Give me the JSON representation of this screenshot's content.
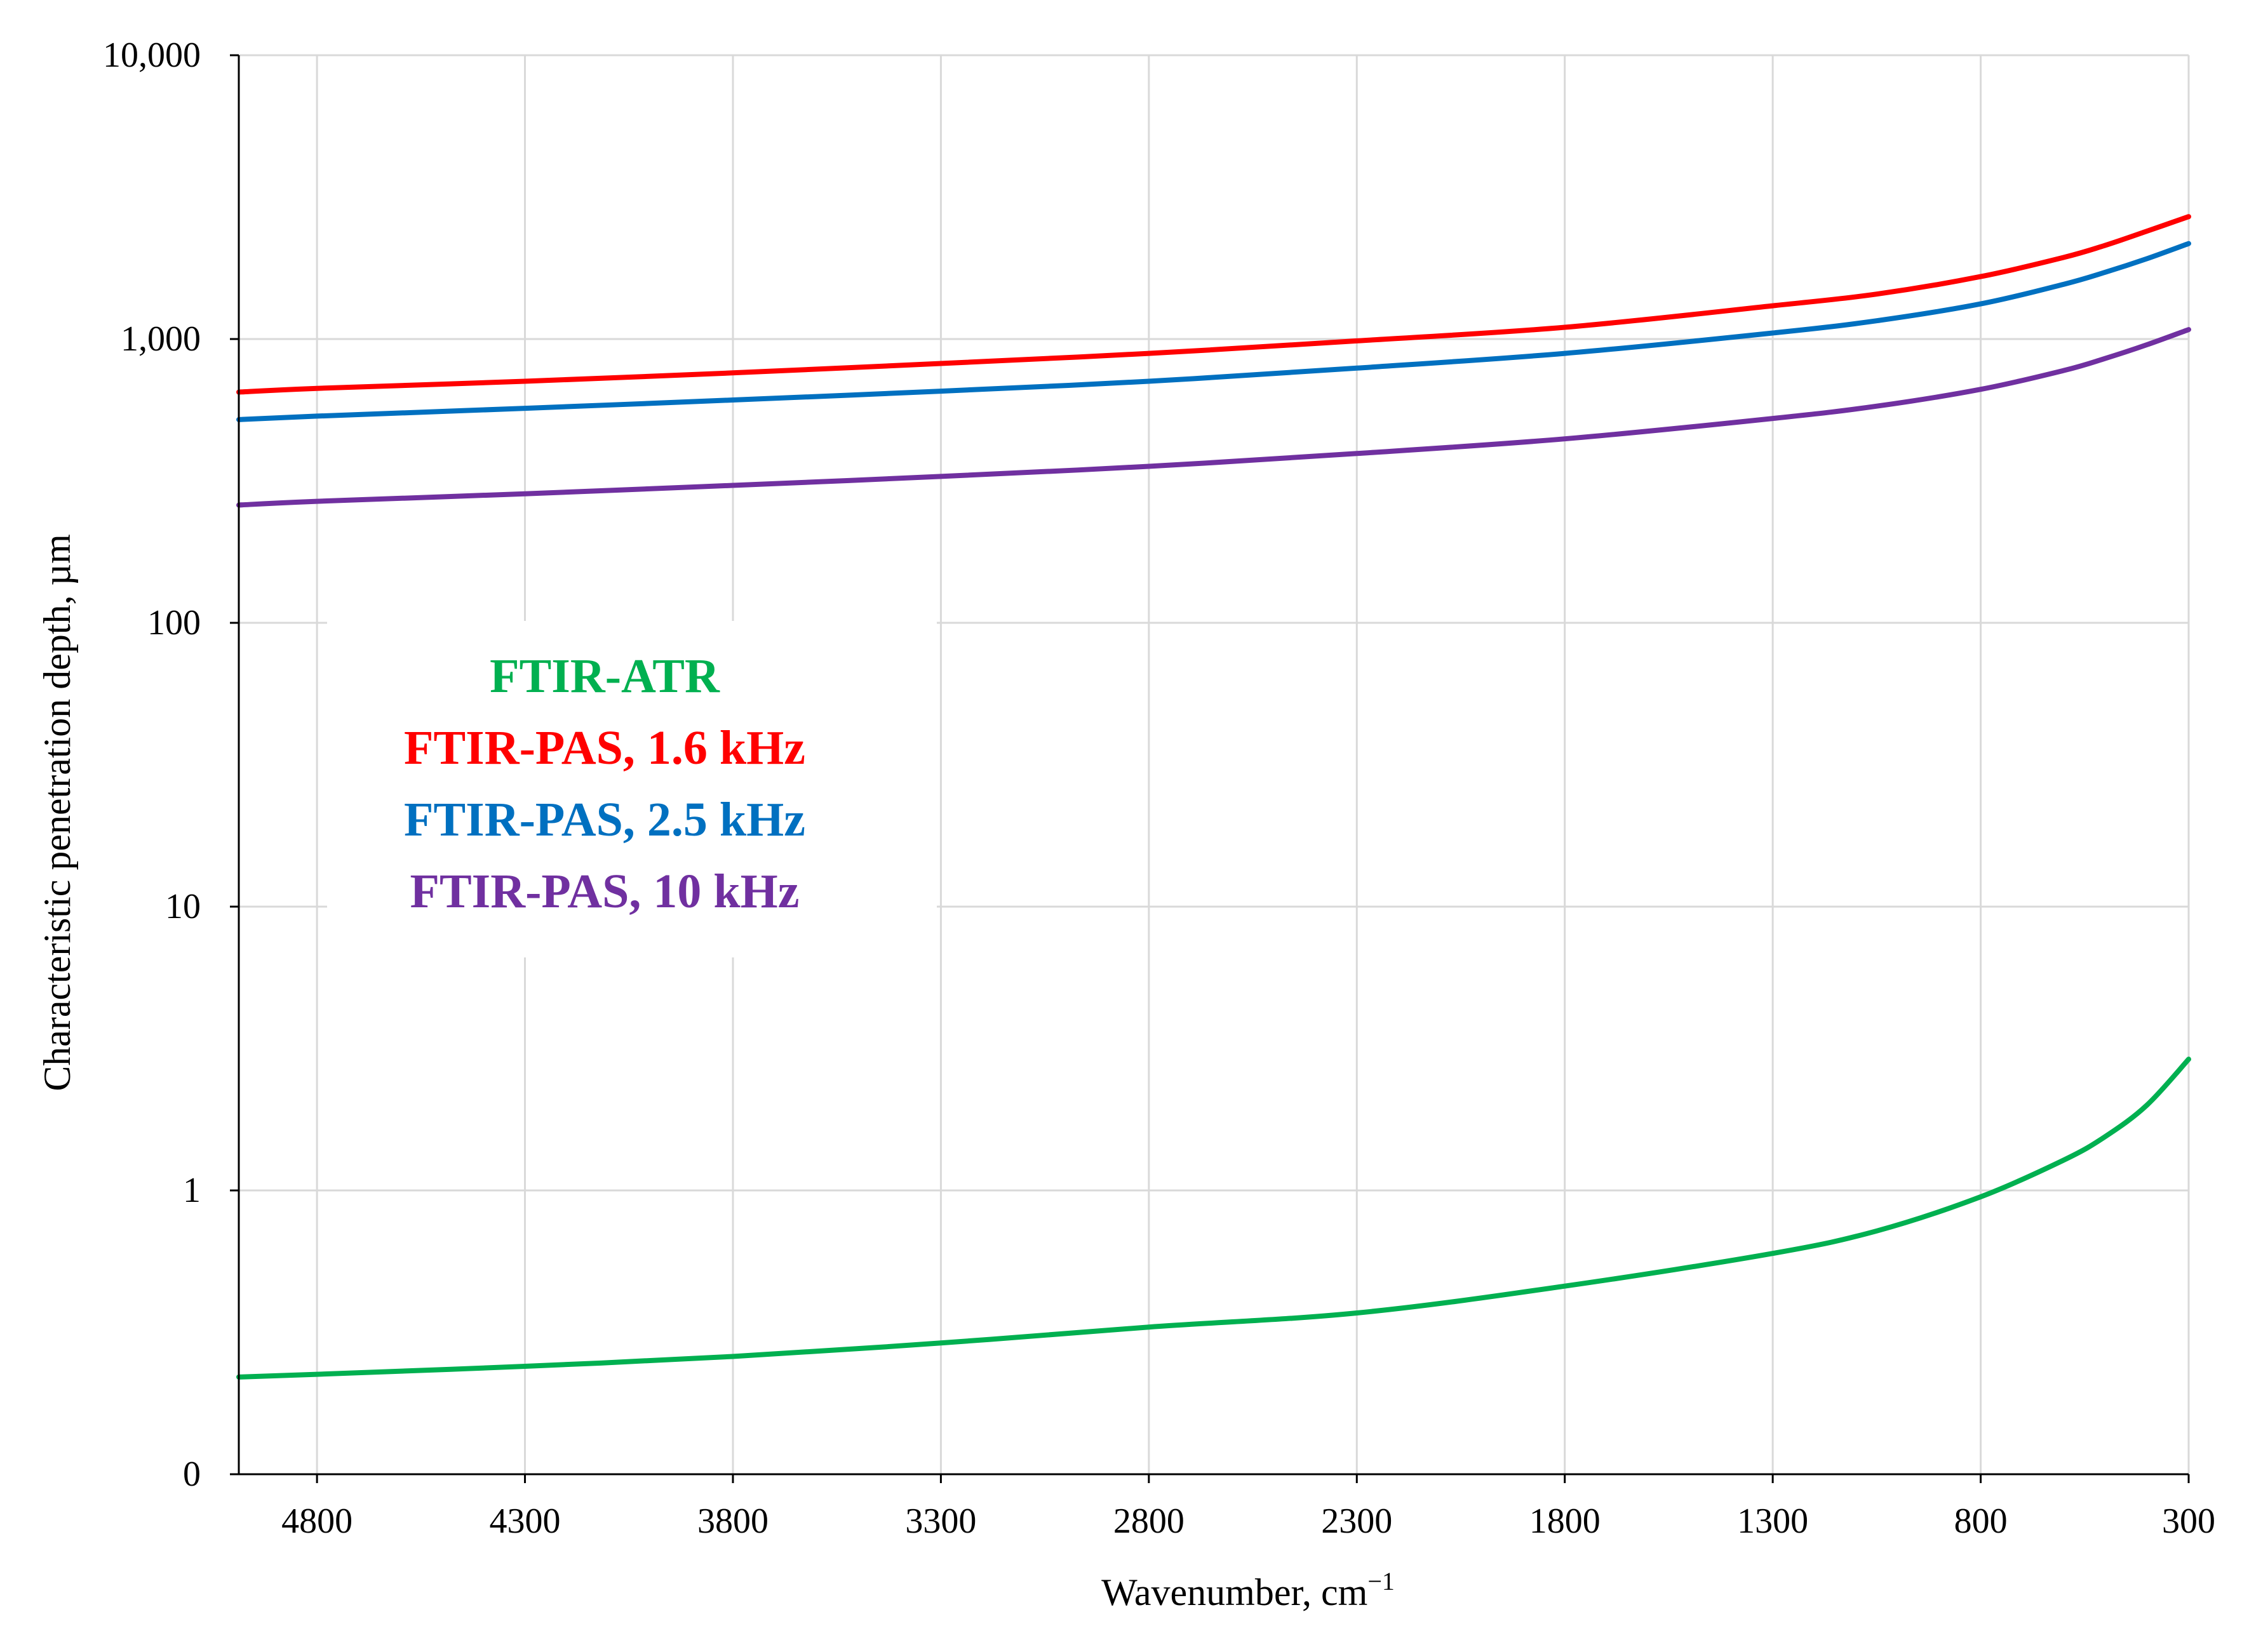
{
  "chart_data": {
    "type": "line",
    "title": "",
    "xlabel": "Wavenumber, cm",
    "xlabel_superscript": "−1",
    "ylabel": "Characteristic penetration depth, µm",
    "x_reversed": true,
    "x_range": [
      4988,
      300
    ],
    "x_ticks": [
      4800,
      4300,
      3800,
      3300,
      2800,
      2300,
      1800,
      1300,
      800,
      300
    ],
    "y_scale": "log",
    "y_range": [
      0.1,
      10000
    ],
    "y_ticks": [
      {
        "value": 0.1,
        "label": "0"
      },
      {
        "value": 1,
        "label": "1"
      },
      {
        "value": 10,
        "label": "10"
      },
      {
        "value": 100,
        "label": "100"
      },
      {
        "value": 1000,
        "label": "1,000"
      },
      {
        "value": 10000,
        "label": "10,000"
      }
    ],
    "grid": true,
    "legend_position": "center-left",
    "x": [
      4988,
      4800,
      4300,
      3800,
      3300,
      2800,
      2300,
      1800,
      1300,
      1050,
      800,
      600,
      500,
      400,
      300
    ],
    "series": [
      {
        "name": "FTIR-ATR",
        "color": "#00b050",
        "values": [
          0.22,
          0.225,
          0.24,
          0.26,
          0.29,
          0.33,
          0.37,
          0.46,
          0.6,
          0.72,
          0.95,
          1.28,
          1.55,
          2.0,
          2.9
        ]
      },
      {
        "name": "FTIR-PAS, 1.6 kHz",
        "color": "#ff0000",
        "values": [
          650,
          670,
          710,
          760,
          820,
          890,
          985,
          1100,
          1310,
          1440,
          1660,
          1940,
          2140,
          2400,
          2700
        ]
      },
      {
        "name": "FTIR-PAS, 2.5 kHz",
        "color": "#0070c0",
        "values": [
          520,
          535,
          570,
          610,
          655,
          710,
          790,
          890,
          1050,
          1160,
          1330,
          1560,
          1720,
          1920,
          2170
        ]
      },
      {
        "name": "FTIR-PAS, 10 kHz",
        "color": "#7030a0",
        "values": [
          260,
          268,
          285,
          305,
          328,
          356,
          395,
          445,
          525,
          580,
          665,
          775,
          855,
          955,
          1080
        ]
      }
    ]
  }
}
